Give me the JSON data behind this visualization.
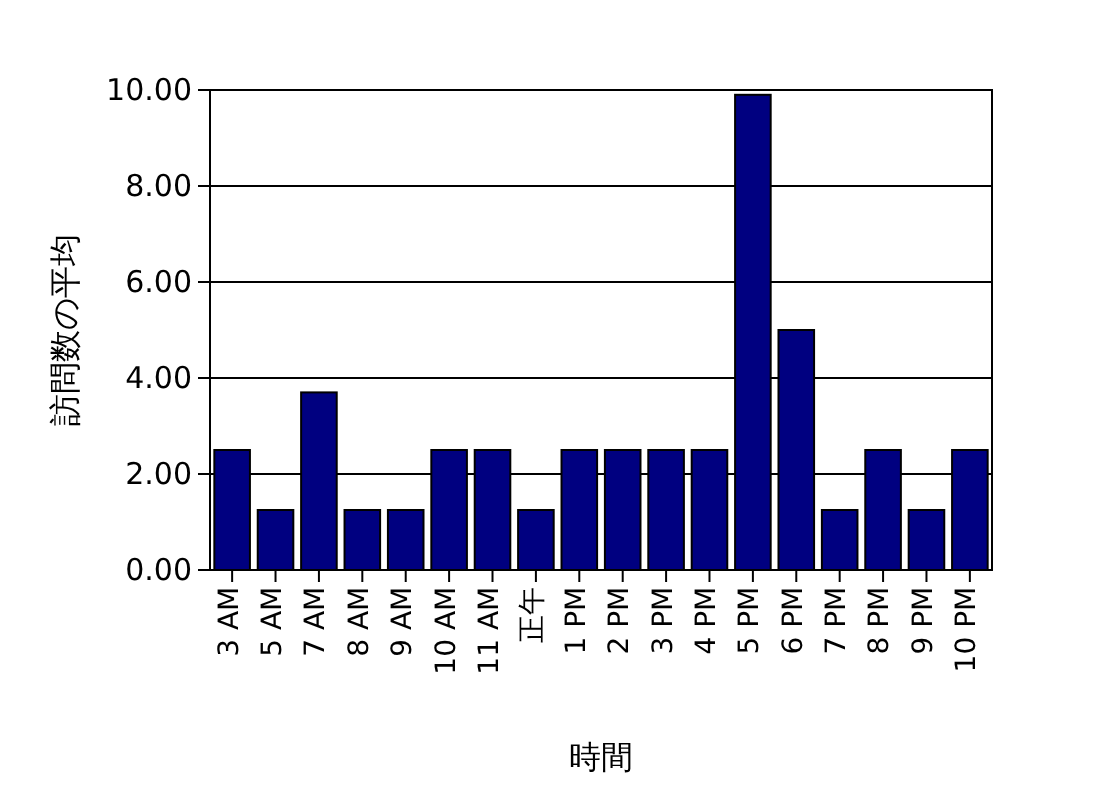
{
  "chart_data": {
    "type": "bar",
    "xlabel": "時間",
    "ylabel": "訪問数の平均",
    "categories": [
      "3 AM",
      "5 AM",
      "7 AM",
      "8 AM",
      "9 AM",
      "10 AM",
      "11 AM",
      "正午",
      "1 PM",
      "2 PM",
      "3 PM",
      "4 PM",
      "5 PM",
      "6 PM",
      "7 PM",
      "8 PM",
      "9 PM",
      "10 PM"
    ],
    "values": [
      2.5,
      1.25,
      3.7,
      1.25,
      1.25,
      2.5,
      2.5,
      1.25,
      2.5,
      2.5,
      2.5,
      2.5,
      9.9,
      5,
      1.25,
      2.5,
      1.25,
      2.5
    ],
    "color": "#000080",
    "ylim": [
      0,
      10
    ],
    "yticks": [
      {
        "value": 0,
        "label": "0.00"
      },
      {
        "value": 2,
        "label": "2.00"
      },
      {
        "value": 4,
        "label": "4.00"
      },
      {
        "value": 6,
        "label": "6.00"
      },
      {
        "value": 8,
        "label": "8.00"
      },
      {
        "value": 10,
        "label": "10.00"
      }
    ],
    "grid": "y"
  }
}
